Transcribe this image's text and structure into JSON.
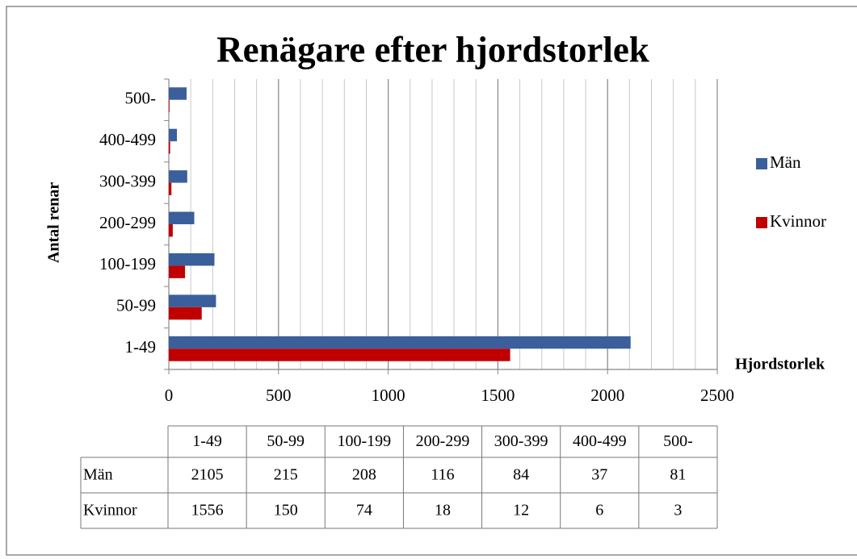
{
  "chart_data": {
    "type": "bar",
    "orientation": "horizontal",
    "title": "Renägare efter hjordstorlek",
    "y_label": "Antal renar",
    "x_label": "Hjordstorlek",
    "categories": [
      "1-49",
      "50-99",
      "100-199",
      "200-299",
      "300-399",
      "400-499",
      "500-"
    ],
    "series": [
      {
        "name": "Män",
        "color": "#3a5f9b",
        "values": [
          2105,
          215,
          208,
          116,
          84,
          37,
          81
        ]
      },
      {
        "name": "Kvinnor",
        "color": "#c00000",
        "values": [
          1556,
          150,
          74,
          18,
          12,
          6,
          3
        ]
      }
    ],
    "xlim": [
      0,
      2500
    ],
    "xticks": [
      0,
      500,
      1000,
      1500,
      2000,
      2500
    ],
    "grid": true,
    "minor_grid": true,
    "legend": "right",
    "data_table": true
  }
}
